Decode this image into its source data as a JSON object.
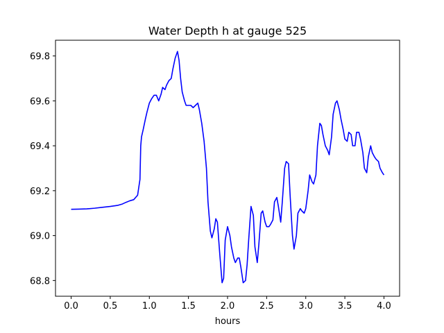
{
  "chart_data": {
    "type": "line",
    "title": "Water Depth h at gauge 525",
    "xlabel": "hours",
    "ylabel": "",
    "xlim": [
      -0.2,
      4.2
    ],
    "ylim": [
      68.73,
      69.87
    ],
    "xticks": [
      0.0,
      0.5,
      1.0,
      1.5,
      2.0,
      2.5,
      3.0,
      3.5,
      4.0
    ],
    "xtick_labels": [
      "0.0",
      "0.5",
      "1.0",
      "1.5",
      "2.0",
      "2.5",
      "3.0",
      "3.5",
      "4.0"
    ],
    "yticks": [
      68.8,
      69.0,
      69.2,
      69.4,
      69.6,
      69.8
    ],
    "ytick_labels": [
      "68.8",
      "69.0",
      "69.2",
      "69.4",
      "69.6",
      "69.8"
    ],
    "grid": false,
    "series": [
      {
        "color": "#0000ff",
        "x": [
          0.0,
          0.1,
          0.2,
          0.3,
          0.4,
          0.5,
          0.6,
          0.65,
          0.7,
          0.75,
          0.8,
          0.85,
          0.88,
          0.89,
          0.9,
          0.92,
          0.95,
          0.97,
          1.0,
          1.03,
          1.06,
          1.09,
          1.12,
          1.15,
          1.17,
          1.2,
          1.22,
          1.25,
          1.28,
          1.3,
          1.33,
          1.36,
          1.38,
          1.4,
          1.42,
          1.45,
          1.47,
          1.5,
          1.53,
          1.56,
          1.59,
          1.62,
          1.64,
          1.67,
          1.7,
          1.73,
          1.75,
          1.78,
          1.8,
          1.83,
          1.85,
          1.87,
          1.9,
          1.93,
          1.95,
          1.97,
          2.0,
          2.03,
          2.05,
          2.08,
          2.1,
          2.13,
          2.15,
          2.17,
          2.2,
          2.23,
          2.25,
          2.27,
          2.3,
          2.33,
          2.35,
          2.38,
          2.4,
          2.43,
          2.45,
          2.48,
          2.5,
          2.53,
          2.55,
          2.58,
          2.6,
          2.63,
          2.65,
          2.68,
          2.7,
          2.73,
          2.75,
          2.78,
          2.8,
          2.83,
          2.85,
          2.88,
          2.9,
          2.93,
          2.95,
          2.98,
          3.0,
          3.03,
          3.05,
          3.08,
          3.1,
          3.13,
          3.15,
          3.18,
          3.2,
          3.22,
          3.25,
          3.28,
          3.3,
          3.33,
          3.35,
          3.38,
          3.4,
          3.43,
          3.45,
          3.48,
          3.5,
          3.53,
          3.55,
          3.58,
          3.6,
          3.63,
          3.65,
          3.68,
          3.7,
          3.73,
          3.75,
          3.78,
          3.8,
          3.83,
          3.85,
          3.88,
          3.9,
          3.93,
          3.95,
          3.98,
          4.0
        ],
        "y": [
          69.117,
          69.118,
          69.119,
          69.122,
          69.126,
          69.13,
          69.135,
          69.14,
          69.148,
          69.155,
          69.16,
          69.18,
          69.25,
          69.4,
          69.44,
          69.47,
          69.52,
          69.55,
          69.59,
          69.61,
          69.625,
          69.625,
          69.6,
          69.63,
          69.66,
          69.65,
          69.67,
          69.69,
          69.7,
          69.74,
          69.79,
          69.82,
          69.78,
          69.7,
          69.64,
          69.6,
          69.58,
          69.58,
          69.58,
          69.57,
          69.58,
          69.59,
          69.56,
          69.5,
          69.42,
          69.3,
          69.15,
          69.02,
          68.99,
          69.03,
          69.075,
          69.06,
          68.92,
          68.79,
          68.81,
          68.98,
          69.04,
          69.0,
          68.95,
          68.9,
          68.88,
          68.9,
          68.9,
          68.86,
          68.79,
          68.8,
          68.87,
          68.98,
          69.13,
          69.09,
          68.95,
          68.88,
          68.96,
          69.1,
          69.11,
          69.06,
          69.04,
          69.04,
          69.05,
          69.07,
          69.15,
          69.17,
          69.13,
          69.06,
          69.15,
          69.3,
          69.33,
          69.32,
          69.18,
          69.0,
          68.94,
          69.0,
          69.1,
          69.12,
          69.11,
          69.1,
          69.12,
          69.2,
          69.27,
          69.24,
          69.23,
          69.27,
          69.4,
          69.5,
          69.49,
          69.45,
          69.4,
          69.38,
          69.36,
          69.44,
          69.54,
          69.59,
          69.6,
          69.56,
          69.52,
          69.47,
          69.43,
          69.42,
          69.46,
          69.45,
          69.4,
          69.4,
          69.46,
          69.46,
          69.43,
          69.37,
          69.3,
          69.28,
          69.35,
          69.4,
          69.37,
          69.35,
          69.34,
          69.33,
          69.3,
          69.28,
          69.27
        ]
      }
    ]
  }
}
